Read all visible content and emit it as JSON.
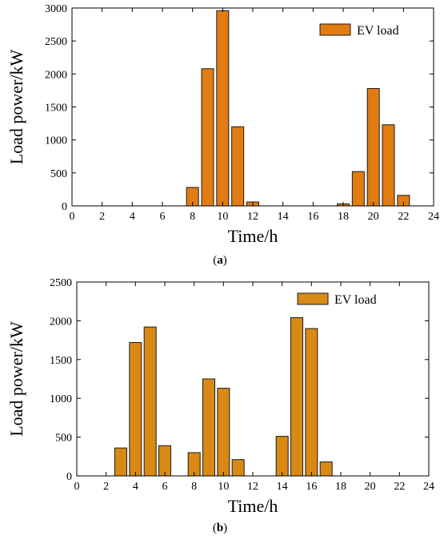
{
  "chart_data": [
    {
      "type": "bar",
      "caption": "(a)",
      "caption_letter": "a",
      "xlabel": "Time/h",
      "ylabel": "Load power/kW",
      "xlim": [
        0,
        24
      ],
      "ylim": [
        0,
        3000
      ],
      "xticks": [
        0,
        2,
        4,
        6,
        8,
        10,
        12,
        14,
        16,
        18,
        20,
        22,
        24
      ],
      "yticks": [
        0,
        500,
        1000,
        1500,
        2000,
        2500,
        3000
      ],
      "legend_position": "top-right",
      "grid": false,
      "series": [
        {
          "name": "EV load",
          "color": "#E07C12",
          "x": [
            8,
            9,
            10,
            11,
            12,
            18,
            19,
            20,
            21,
            22
          ],
          "values": [
            280,
            2080,
            2960,
            1200,
            60,
            30,
            520,
            1780,
            1230,
            160
          ]
        }
      ]
    },
    {
      "type": "bar",
      "caption": "(b)",
      "caption_letter": "b",
      "xlabel": "Time/h",
      "ylabel": "Load power/kW",
      "xlim": [
        0,
        24
      ],
      "ylim": [
        0,
        2500
      ],
      "xticks": [
        0,
        2,
        4,
        6,
        8,
        10,
        12,
        14,
        16,
        18,
        20,
        22,
        24
      ],
      "yticks": [
        0,
        500,
        1000,
        1500,
        2000,
        2500
      ],
      "legend_position": "top-right",
      "grid": false,
      "series": [
        {
          "name": "EV load",
          "color": "#D98A14",
          "x": [
            3,
            4,
            5,
            6,
            8,
            9,
            10,
            11,
            14,
            15,
            16,
            17
          ],
          "values": [
            360,
            1720,
            1920,
            390,
            300,
            1250,
            1130,
            210,
            510,
            2040,
            1900,
            180
          ]
        }
      ]
    }
  ]
}
